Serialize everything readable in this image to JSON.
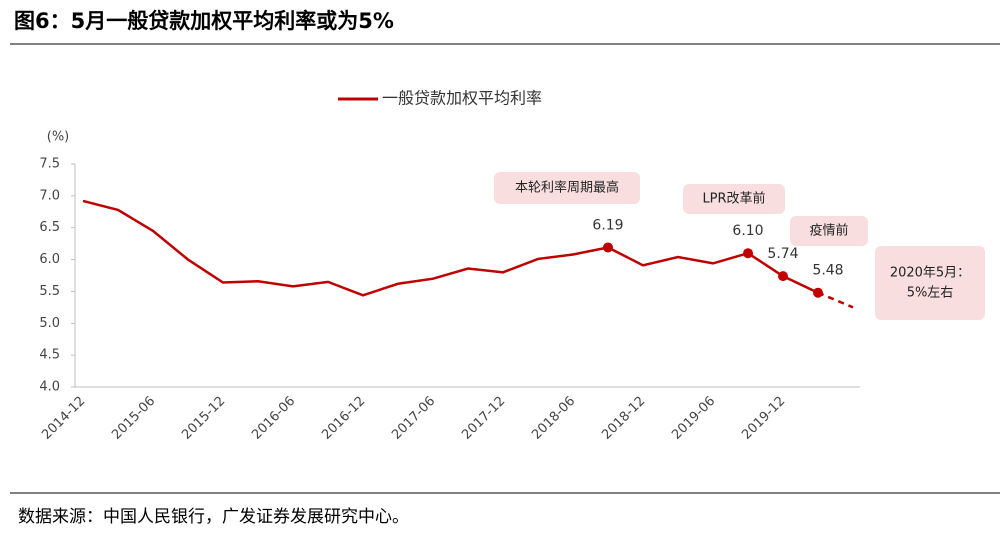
{
  "chart_data": {
    "type": "line",
    "title": "图6：5月一般贷款加权平均利率或为5%",
    "y_unit": "(%)",
    "source": "数据来源：中国人民银行，广发证券发展研究中心。",
    "categories": [
      "2014-12",
      null,
      "2015-06",
      null,
      "2015-12",
      null,
      "2016-06",
      null,
      "2016-12",
      null,
      "2017-06",
      null,
      "2017-12",
      null,
      "2018-06",
      null,
      "2018-12",
      null,
      "2019-06",
      null,
      "2019-12",
      null,
      null
    ],
    "series": [
      {
        "name": "一般贷款加权平均利率",
        "color": "#c00000",
        "values": [
          6.92,
          6.78,
          6.45,
          6.0,
          5.64,
          5.66,
          5.58,
          5.65,
          5.44,
          5.62,
          5.7,
          5.86,
          5.8,
          6.01,
          6.08,
          6.19,
          5.91,
          6.04,
          5.94,
          6.1,
          5.74,
          5.48,
          null
        ],
        "value_labels": [
          null,
          null,
          null,
          null,
          null,
          null,
          null,
          null,
          null,
          null,
          null,
          null,
          null,
          null,
          null,
          "6.19",
          null,
          null,
          null,
          "6.10",
          "5.74",
          "5.48",
          null
        ]
      },
      {
        "color": "#c00000",
        "dashed": true,
        "values": [
          null,
          null,
          null,
          null,
          null,
          null,
          null,
          null,
          null,
          null,
          null,
          null,
          null,
          null,
          null,
          null,
          null,
          null,
          null,
          null,
          null,
          5.48,
          5.25
        ]
      }
    ],
    "ylim": [
      4,
      7.5
    ],
    "yticks": [
      {
        "value": 4,
        "label": "4.0"
      },
      4.5,
      {
        "value": 5,
        "label": "5.0"
      },
      5.5,
      {
        "value": 6,
        "label": "6.0"
      },
      6.5,
      {
        "value": 7,
        "label": "7.0"
      },
      7.5
    ],
    "grid": false,
    "legend": "top",
    "annotations": [
      [
        "本轮利率周期最高"
      ],
      [
        "LPR改革前"
      ],
      [
        "疫情前"
      ],
      [
        "2020年5月：",
        "5%左右"
      ]
    ]
  }
}
